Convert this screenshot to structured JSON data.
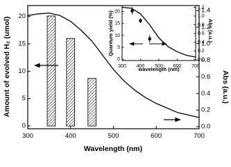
{
  "chart_data": [
    {
      "type": "combo",
      "xlabel": "Wavelength (nm)",
      "ylabel": "Amount of evolved H₂ (umol)",
      "y2label": "Abs (a.u.)",
      "xlim": [
        300,
        700
      ],
      "xticks": [
        300,
        400,
        500,
        600,
        700
      ],
      "ylim": [
        -0.5,
        22
      ],
      "yticks": [
        0,
        5,
        10,
        15,
        20
      ],
      "y2lim": [
        -0.025,
        1.46
      ],
      "y2ticks": [
        {
          "value": 0,
          "label": "0.0"
        },
        {
          "value": 0.2,
          "label": "0.2"
        },
        {
          "value": 0.4,
          "label": "0.4"
        },
        {
          "value": 0.6,
          "label": "0.6"
        },
        {
          "value": 0.8,
          "label": "0.8"
        },
        {
          "value": 1,
          "label": "1.0"
        },
        {
          "value": 1.2,
          "label": "1.2"
        },
        {
          "value": 1.4,
          "label": "1.4"
        }
      ],
      "series": [
        {
          "type": "bar",
          "color": "#000000",
          "x": [
            355,
            400,
            450
          ],
          "values": [
            20.1,
            16.0,
            8.7
          ]
        },
        {
          "type": "line",
          "axis": "y2",
          "color": "#000000",
          "x": [
            300,
            325,
            350,
            375,
            400,
            425,
            450,
            475,
            500,
            525,
            550,
            575,
            600,
            650,
            700
          ],
          "values": [
            1.34,
            1.36,
            1.37,
            1.34,
            1.27,
            1.16,
            1.03,
            0.86,
            0.69,
            0.55,
            0.44,
            0.35,
            0.28,
            0.17,
            0.11
          ]
        }
      ]
    },
    {
      "type": "combo",
      "xlabel": "wavelength (nm)",
      "ylabel": "Quantum yield (%)",
      "y2label": "Abs (a.u.)",
      "xlim": [
        300,
        700
      ],
      "xticks": [
        300,
        400,
        500,
        600,
        700
      ],
      "ylim": [
        -0.5,
        22.5
      ],
      "yticks": [
        0,
        5,
        10,
        15,
        20
      ],
      "y2lim": [
        -0.02,
        1.24
      ],
      "y2ticks": [
        {
          "value": 0,
          "label": "0.0"
        },
        {
          "value": 0.2,
          "label": "0.2"
        },
        {
          "value": 0.4,
          "label": "0.4"
        },
        {
          "value": 0.6,
          "label": "0.6"
        },
        {
          "value": 0.8,
          "label": "0.8"
        },
        {
          "value": 1,
          "label": "1.0"
        },
        {
          "value": 1.2,
          "label": "1.2"
        }
      ],
      "series": [
        {
          "type": "errorbar",
          "color": "#000000",
          "x": [
            355,
            400,
            450
          ],
          "values": [
            20.3,
            16.2,
            8.6
          ],
          "errors": [
            1.5,
            1.0,
            1.5
          ]
        },
        {
          "type": "line",
          "axis": "y2",
          "color": "#000000",
          "x": [
            300,
            350,
            400,
            450,
            500,
            550,
            600,
            650,
            700
          ],
          "values": [
            1.2,
            1.18,
            1.05,
            0.8,
            0.5,
            0.3,
            0.18,
            0.1,
            0.06
          ]
        }
      ]
    }
  ]
}
